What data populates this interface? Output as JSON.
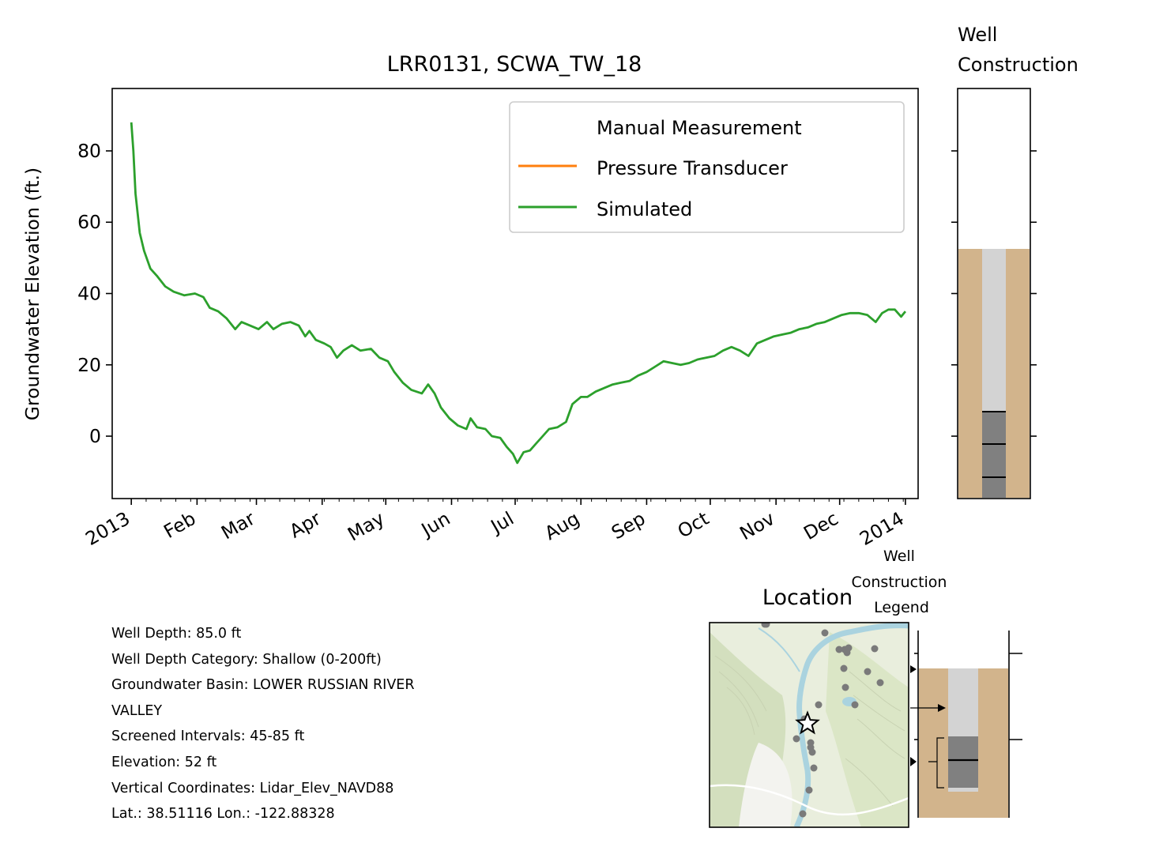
{
  "chart_data": {
    "type": "line",
    "title": "LRR0131, SCWA_TW_18",
    "ylabel": "Groundwater Elevation (ft.)",
    "xlabel": "",
    "ylim": [
      -17.5,
      97.5
    ],
    "yticks": [
      0,
      20,
      40,
      60,
      80
    ],
    "xlim": [
      "2012-12-23",
      "2014-01-07"
    ],
    "xticks": [
      {
        "date": "2013-01-01",
        "label": "2013"
      },
      {
        "date": "2013-02-01",
        "label": "Feb"
      },
      {
        "date": "2013-03-01",
        "label": "Mar"
      },
      {
        "date": "2013-04-01",
        "label": "Apr"
      },
      {
        "date": "2013-05-01",
        "label": "May"
      },
      {
        "date": "2013-06-01",
        "label": "Jun"
      },
      {
        "date": "2013-07-01",
        "label": "Jul"
      },
      {
        "date": "2013-08-01",
        "label": "Aug"
      },
      {
        "date": "2013-09-01",
        "label": "Sep"
      },
      {
        "date": "2013-10-01",
        "label": "Oct"
      },
      {
        "date": "2013-11-01",
        "label": "Nov"
      },
      {
        "date": "2013-12-01",
        "label": "Dec"
      },
      {
        "date": "2014-01-01",
        "label": "2014"
      }
    ],
    "legend_position": "upper-right",
    "grid": false,
    "series": [
      {
        "name": "Manual Measurement",
        "color": "none",
        "points": []
      },
      {
        "name": "Pressure Transducer",
        "color": "#ff7f0e",
        "points": []
      },
      {
        "name": "Simulated",
        "color": "#2ca02c",
        "points": [
          [
            "2013-01-01",
            88
          ],
          [
            "2013-01-02",
            80
          ],
          [
            "2013-01-03",
            68
          ],
          [
            "2013-01-05",
            57
          ],
          [
            "2013-01-07",
            52
          ],
          [
            "2013-01-10",
            47
          ],
          [
            "2013-01-13",
            45
          ],
          [
            "2013-01-17",
            42
          ],
          [
            "2013-01-21",
            40.5
          ],
          [
            "2013-01-26",
            39.5
          ],
          [
            "2013-01-31",
            40
          ],
          [
            "2013-02-04",
            39
          ],
          [
            "2013-02-07",
            36
          ],
          [
            "2013-02-11",
            35
          ],
          [
            "2013-02-15",
            33
          ],
          [
            "2013-02-19",
            30
          ],
          [
            "2013-02-22",
            32
          ],
          [
            "2013-02-26",
            31
          ],
          [
            "2013-03-02",
            30
          ],
          [
            "2013-03-06",
            32
          ],
          [
            "2013-03-09",
            30
          ],
          [
            "2013-03-13",
            31.5
          ],
          [
            "2013-03-17",
            32
          ],
          [
            "2013-03-21",
            31
          ],
          [
            "2013-03-24",
            28
          ],
          [
            "2013-03-26",
            29.5
          ],
          [
            "2013-03-29",
            27
          ],
          [
            "2013-04-02",
            26
          ],
          [
            "2013-04-05",
            25
          ],
          [
            "2013-04-08",
            22
          ],
          [
            "2013-04-11",
            24
          ],
          [
            "2013-04-15",
            25.5
          ],
          [
            "2013-04-19",
            24
          ],
          [
            "2013-04-24",
            24.5
          ],
          [
            "2013-04-28",
            22
          ],
          [
            "2013-05-02",
            21
          ],
          [
            "2013-05-05",
            18
          ],
          [
            "2013-05-09",
            15
          ],
          [
            "2013-05-13",
            13
          ],
          [
            "2013-05-18",
            12
          ],
          [
            "2013-05-21",
            14.5
          ],
          [
            "2013-05-24",
            12
          ],
          [
            "2013-05-27",
            8
          ],
          [
            "2013-05-31",
            5
          ],
          [
            "2013-06-04",
            3
          ],
          [
            "2013-06-08",
            2
          ],
          [
            "2013-06-10",
            5
          ],
          [
            "2013-06-13",
            2.5
          ],
          [
            "2013-06-17",
            2
          ],
          [
            "2013-06-20",
            0
          ],
          [
            "2013-06-24",
            -0.5
          ],
          [
            "2013-06-27",
            -3
          ],
          [
            "2013-06-30",
            -5
          ],
          [
            "2013-07-02",
            -7.5
          ],
          [
            "2013-07-05",
            -4.5
          ],
          [
            "2013-07-08",
            -4
          ],
          [
            "2013-07-11",
            -2
          ],
          [
            "2013-07-14",
            0
          ],
          [
            "2013-07-17",
            2
          ],
          [
            "2013-07-21",
            2.5
          ],
          [
            "2013-07-25",
            4
          ],
          [
            "2013-07-28",
            9
          ],
          [
            "2013-08-01",
            11
          ],
          [
            "2013-08-04",
            11
          ],
          [
            "2013-08-08",
            12.5
          ],
          [
            "2013-08-12",
            13.5
          ],
          [
            "2013-08-16",
            14.5
          ],
          [
            "2013-08-20",
            15
          ],
          [
            "2013-08-24",
            15.5
          ],
          [
            "2013-08-28",
            17
          ],
          [
            "2013-09-01",
            18
          ],
          [
            "2013-09-05",
            19.5
          ],
          [
            "2013-09-09",
            21
          ],
          [
            "2013-09-13",
            20.5
          ],
          [
            "2013-09-17",
            20
          ],
          [
            "2013-09-21",
            20.5
          ],
          [
            "2013-09-25",
            21.5
          ],
          [
            "2013-09-29",
            22
          ],
          [
            "2013-10-03",
            22.5
          ],
          [
            "2013-10-07",
            24
          ],
          [
            "2013-10-11",
            25
          ],
          [
            "2013-10-15",
            24
          ],
          [
            "2013-10-19",
            22.5
          ],
          [
            "2013-10-23",
            26
          ],
          [
            "2013-10-27",
            27
          ],
          [
            "2013-10-31",
            28
          ],
          [
            "2013-11-04",
            28.5
          ],
          [
            "2013-11-08",
            29
          ],
          [
            "2013-11-12",
            30
          ],
          [
            "2013-11-16",
            30.5
          ],
          [
            "2013-11-20",
            31.5
          ],
          [
            "2013-11-24",
            32
          ],
          [
            "2013-11-28",
            33
          ],
          [
            "2013-12-02",
            34
          ],
          [
            "2013-12-06",
            34.5
          ],
          [
            "2013-12-10",
            34.5
          ],
          [
            "2013-12-14",
            34
          ],
          [
            "2013-12-18",
            32
          ],
          [
            "2013-12-21",
            34.5
          ],
          [
            "2013-12-24",
            35.5
          ],
          [
            "2013-12-27",
            35.5
          ],
          [
            "2013-12-30",
            33.5
          ],
          [
            "2014-01-01",
            35
          ]
        ]
      }
    ]
  },
  "well_construction": {
    "title": "Well\nConstruction",
    "ground_surface_elevation": 52,
    "casing_colour": "#d3d3d3",
    "screen_colour": "#808080",
    "annulus_colour": "#d2b48c",
    "screened_interval_ft": [
      45,
      85
    ]
  },
  "location": {
    "title": "Location"
  },
  "legend_inset": {
    "title": "Well\nConstruction\nLegend"
  },
  "well_info": {
    "lines": [
      "Well Depth: 85.0 ft",
      "Well Depth Category: Shallow (0-200ft)",
      "Groundwater Basin: LOWER RUSSIAN RIVER",
      "VALLEY",
      "Screened Intervals: 45-85 ft",
      "Elevation: 52 ft",
      "Vertical Coordinates: Lidar_Elev_NAVD88",
      "Lat.: 38.51116 Lon.: -122.88328"
    ]
  }
}
